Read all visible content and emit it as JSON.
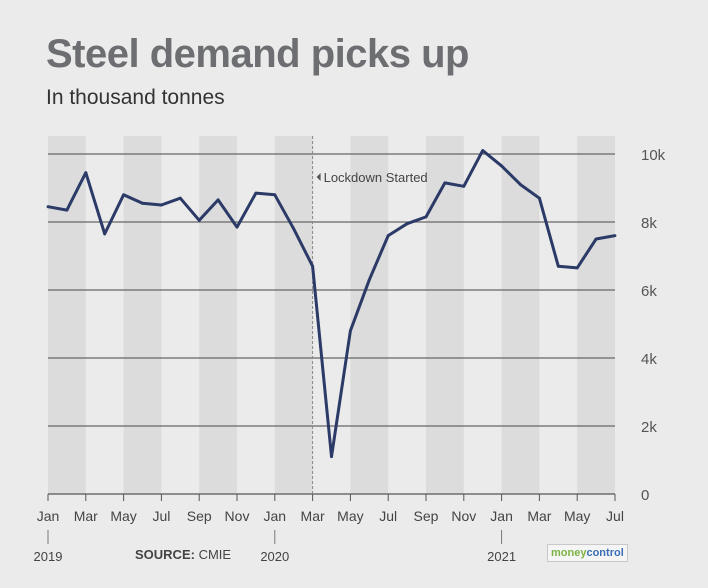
{
  "title": "Steel demand picks up",
  "subtitle": "In thousand tonnes",
  "source_label": "SOURCE:",
  "source_value": "CMIE",
  "logo": {
    "part1": "money",
    "part2": "control"
  },
  "annotation": "Lockdown Started",
  "colors": {
    "line": "#2b3a67",
    "grid": "#666666",
    "band": "#dcdcdc",
    "background": "#ebebeb",
    "annotation_line": "#888888"
  },
  "chart_data": {
    "type": "line",
    "title": "Steel demand picks up",
    "subtitle": "In thousand tonnes",
    "ylim": [
      0,
      10000
    ],
    "y_ticks": [
      0,
      2000,
      4000,
      6000,
      8000,
      10000
    ],
    "y_tick_labels": [
      "0",
      "2k",
      "4k",
      "6k",
      "8k",
      "10k"
    ],
    "x": [
      "2019-01",
      "2019-02",
      "2019-03",
      "2019-04",
      "2019-05",
      "2019-06",
      "2019-07",
      "2019-08",
      "2019-09",
      "2019-10",
      "2019-11",
      "2019-12",
      "2020-01",
      "2020-02",
      "2020-03",
      "2020-04",
      "2020-05",
      "2020-06",
      "2020-07",
      "2020-08",
      "2020-09",
      "2020-10",
      "2020-11",
      "2020-12",
      "2021-01",
      "2021-02",
      "2021-03",
      "2021-04",
      "2021-05",
      "2021-06",
      "2021-07"
    ],
    "x_tick_labels": [
      "Jan",
      "Mar",
      "May",
      "Jul",
      "Sep",
      "Nov",
      "Jan",
      "Mar",
      "May",
      "Jul",
      "Sep",
      "Nov",
      "Jan",
      "Mar",
      "May",
      "Jul"
    ],
    "x_tick_index": [
      0,
      2,
      4,
      6,
      8,
      10,
      12,
      14,
      16,
      18,
      20,
      22,
      24,
      26,
      28,
      30
    ],
    "year_labels": [
      {
        "label": "2019",
        "index": 0
      },
      {
        "label": "2020",
        "index": 12
      },
      {
        "label": "2021",
        "index": 24
      }
    ],
    "series": [
      {
        "values": [
          8450,
          8350,
          9450,
          7650,
          8800,
          8550,
          8500,
          8700,
          8050,
          8650,
          7850,
          8850,
          8800,
          7800,
          6700,
          1100,
          4800,
          6300,
          7600,
          7950,
          8150,
          9150,
          9050,
          10100,
          9650,
          9100,
          8700,
          6700,
          6650,
          7500,
          7600
        ]
      }
    ],
    "annotation": {
      "label": "Lockdown Started",
      "index": 14
    },
    "grid": true
  }
}
